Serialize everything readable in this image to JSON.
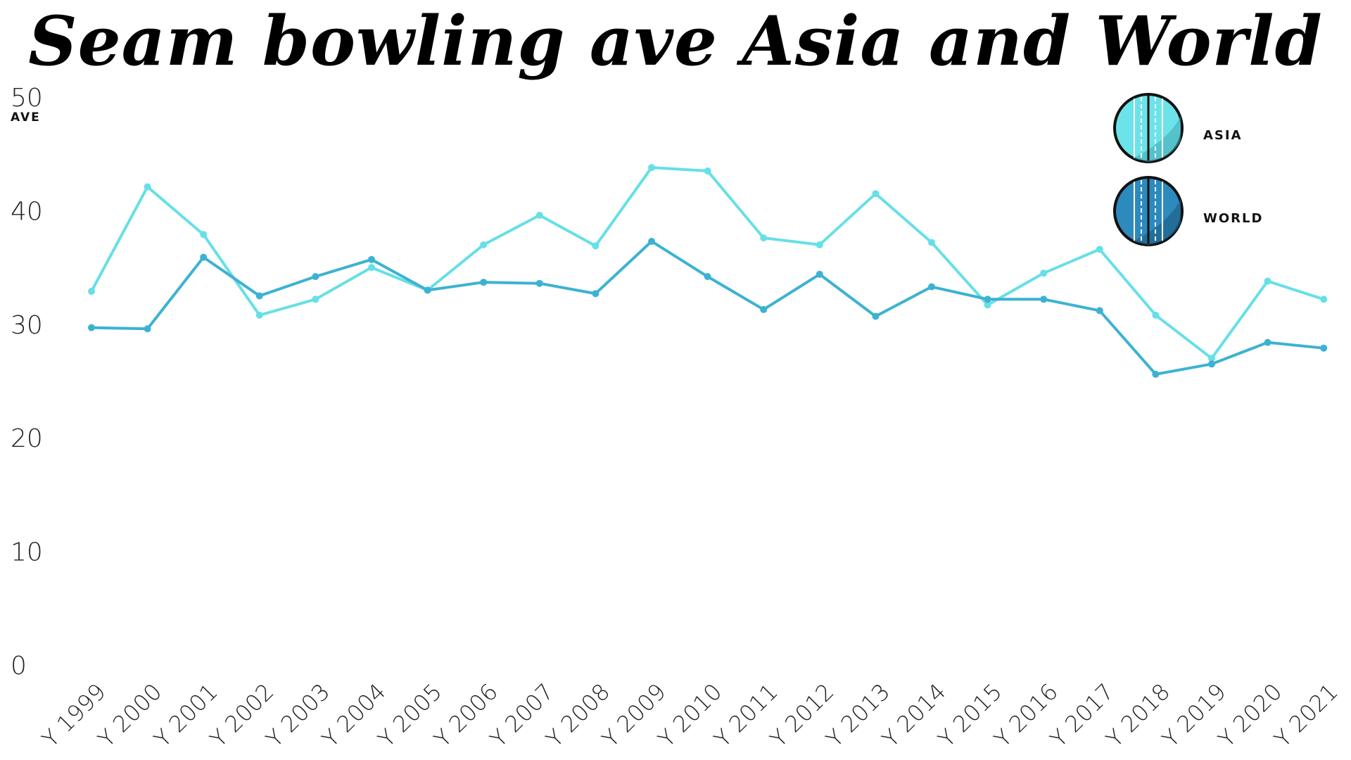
{
  "chart_data": {
    "type": "line",
    "title": "Seam bowling ave Asia and World",
    "xlabel": "",
    "ylabel": "AVE",
    "ylim": [
      0,
      50
    ],
    "yticks": [
      0,
      10,
      20,
      30,
      40,
      50
    ],
    "grid": false,
    "legend_position": "top-right",
    "categories": [
      "Y 1999",
      "Y 2000",
      "Y 2001",
      "Y 2002",
      "Y 2003",
      "Y 2004",
      "Y 2005",
      "Y 2006",
      "Y 2007",
      "Y 2008",
      "Y 2009",
      "Y 2010",
      "Y 2011",
      "Y 2012",
      "Y 2013",
      "Y 2014",
      "Y 2015",
      "Y 2016",
      "Y 2017",
      "Y 2018",
      "Y 2019",
      "Y 2020",
      "Y 2021"
    ],
    "series": [
      {
        "name": "ASIA",
        "color": "#66E0E6",
        "values": [
          32.9,
          42.1,
          37.9,
          30.8,
          32.2,
          35.0,
          33.0,
          37.0,
          39.6,
          36.9,
          43.8,
          43.5,
          37.6,
          37.0,
          41.5,
          37.2,
          31.7,
          34.5,
          36.6,
          30.8,
          27.0,
          33.8,
          32.2
        ]
      },
      {
        "name": "WORLD",
        "color": "#3CB2D2",
        "values": [
          29.7,
          29.6,
          35.9,
          32.5,
          34.2,
          35.7,
          33.0,
          33.7,
          33.6,
          32.7,
          37.3,
          34.2,
          31.3,
          34.4,
          30.7,
          33.3,
          32.2,
          32.2,
          31.2,
          25.6,
          26.5,
          28.4,
          27.9
        ]
      }
    ]
  }
}
